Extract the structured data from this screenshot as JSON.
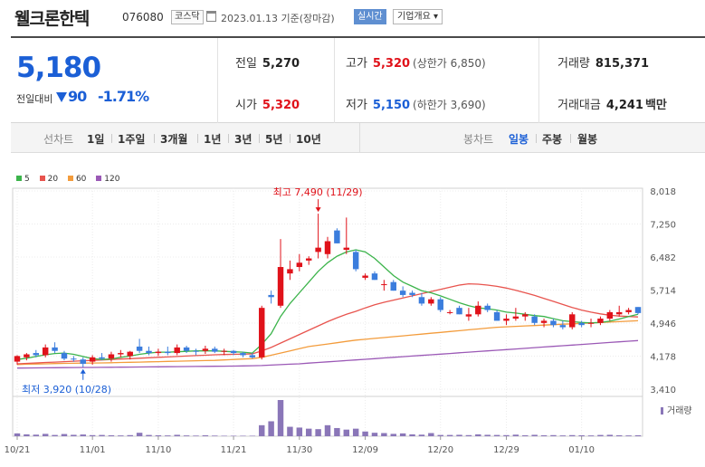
{
  "header": {
    "company_name": "웰크론한텍",
    "code": "076080",
    "market_badge": "코스닥",
    "date_text": "2023.01.13  기준(장마감)",
    "realtime_btn": "실시간",
    "info_btn": "기업개요 ▾"
  },
  "price": {
    "current": "5,180",
    "change_label": "전일대비",
    "change_value": "90",
    "change_pct": "-1.71%",
    "prev_close_label": "전일",
    "prev_close": "5,270",
    "high_label": "고가",
    "high": "5,320",
    "upper_limit": "(상한가 6,850)",
    "volume_label": "거래량",
    "volume": "815,371",
    "open_label": "시가",
    "open": "5,320",
    "low_label": "저가",
    "low": "5,150",
    "lower_limit": "(하한가 3,690)",
    "amount_label": "거래대금",
    "amount": "4,241",
    "amount_unit": "백만"
  },
  "period_bar": {
    "line_label": "선차트",
    "periods": [
      "1일",
      "1주일",
      "3개월",
      "1년",
      "3년",
      "5년",
      "10년"
    ],
    "candle_label": "봉차트",
    "candle_periods": [
      "일봉",
      "주봉",
      "월봉"
    ],
    "selected_candle": "일봉"
  },
  "chart_data": {
    "type": "candlestick",
    "legend": [
      {
        "name": "5",
        "color": "#3cb44b"
      },
      {
        "name": "20",
        "color": "#e8544e"
      },
      {
        "name": "60",
        "color": "#f39c3c"
      },
      {
        "name": "120",
        "color": "#9b59b6"
      }
    ],
    "colors": {
      "up": "#e0121a",
      "down": "#3b7ddd",
      "volume": "#8a76b8"
    },
    "y_ticks": [
      "8,018",
      "7,250",
      "6,482",
      "5,714",
      "4,946",
      "4,178",
      "3,410"
    ],
    "y_range": [
      3410,
      8018
    ],
    "x_ticks": [
      "10/21",
      "11/01",
      "11/10",
      "11/21",
      "11/30",
      "12/09",
      "12/20",
      "12/29",
      "01/10"
    ],
    "volume_label": "거래량",
    "annotations": {
      "max": "최고 7,490 (11/29)",
      "min": "최저 3,920 (10/28)"
    },
    "candles": [
      {
        "o": 4050,
        "h": 4200,
        "l": 3980,
        "c": 4180
      },
      {
        "o": 4150,
        "h": 4250,
        "l": 4080,
        "c": 4220
      },
      {
        "o": 4250,
        "h": 4320,
        "l": 4150,
        "c": 4200
      },
      {
        "o": 4200,
        "h": 4450,
        "l": 4150,
        "c": 4380
      },
      {
        "o": 4380,
        "h": 4500,
        "l": 4250,
        "c": 4300
      },
      {
        "o": 4250,
        "h": 4300,
        "l": 4080,
        "c": 4120
      },
      {
        "o": 4120,
        "h": 4180,
        "l": 4050,
        "c": 4100
      },
      {
        "o": 4100,
        "h": 4150,
        "l": 3920,
        "c": 4000
      },
      {
        "o": 4050,
        "h": 4200,
        "l": 3980,
        "c": 4150
      },
      {
        "o": 4150,
        "h": 4250,
        "l": 4080,
        "c": 4120
      },
      {
        "o": 4120,
        "h": 4280,
        "l": 4050,
        "c": 4220
      },
      {
        "o": 4220,
        "h": 4320,
        "l": 4150,
        "c": 4250
      },
      {
        "o": 4180,
        "h": 4300,
        "l": 4100,
        "c": 4280
      },
      {
        "o": 4400,
        "h": 4580,
        "l": 4250,
        "c": 4300
      },
      {
        "o": 4300,
        "h": 4400,
        "l": 4200,
        "c": 4250
      },
      {
        "o": 4250,
        "h": 4350,
        "l": 4180,
        "c": 4280
      },
      {
        "o": 4280,
        "h": 4400,
        "l": 4200,
        "c": 4250
      },
      {
        "o": 4250,
        "h": 4450,
        "l": 4200,
        "c": 4380
      },
      {
        "o": 4380,
        "h": 4420,
        "l": 4250,
        "c": 4300
      },
      {
        "o": 4300,
        "h": 4350,
        "l": 4200,
        "c": 4280
      },
      {
        "o": 4300,
        "h": 4420,
        "l": 4230,
        "c": 4350
      },
      {
        "o": 4350,
        "h": 4400,
        "l": 4250,
        "c": 4280
      },
      {
        "o": 4280,
        "h": 4350,
        "l": 4200,
        "c": 4300
      },
      {
        "o": 4300,
        "h": 4320,
        "l": 4200,
        "c": 4250
      },
      {
        "o": 4250,
        "h": 4280,
        "l": 4150,
        "c": 4200
      },
      {
        "o": 4200,
        "h": 4250,
        "l": 4120,
        "c": 4150
      },
      {
        "o": 4150,
        "h": 5350,
        "l": 4100,
        "c": 5300
      },
      {
        "o": 5600,
        "h": 5700,
        "l": 5400,
        "c": 5550
      },
      {
        "o": 5350,
        "h": 6900,
        "l": 5300,
        "c": 6250
      },
      {
        "o": 6100,
        "h": 6400,
        "l": 5950,
        "c": 6200
      },
      {
        "o": 6250,
        "h": 6550,
        "l": 6150,
        "c": 6350
      },
      {
        "o": 6400,
        "h": 6500,
        "l": 6300,
        "c": 6450
      },
      {
        "o": 6600,
        "h": 7490,
        "l": 6450,
        "c": 6700
      },
      {
        "o": 6550,
        "h": 6950,
        "l": 6450,
        "c": 6850
      },
      {
        "o": 7100,
        "h": 7150,
        "l": 6800,
        "c": 6800
      },
      {
        "o": 6650,
        "h": 7400,
        "l": 6550,
        "c": 6700
      },
      {
        "o": 6600,
        "h": 6650,
        "l": 6150,
        "c": 6200
      },
      {
        "o": 6000,
        "h": 6100,
        "l": 5950,
        "c": 6050
      },
      {
        "o": 6100,
        "h": 6150,
        "l": 5950,
        "c": 5950
      },
      {
        "o": 5850,
        "h": 5950,
        "l": 5700,
        "c": 5850
      },
      {
        "o": 5900,
        "h": 5950,
        "l": 5700,
        "c": 5700
      },
      {
        "o": 5700,
        "h": 5800,
        "l": 5550,
        "c": 5600
      },
      {
        "o": 5650,
        "h": 5700,
        "l": 5550,
        "c": 5600
      },
      {
        "o": 5550,
        "h": 5650,
        "l": 5350,
        "c": 5400
      },
      {
        "o": 5400,
        "h": 5550,
        "l": 5350,
        "c": 5500
      },
      {
        "o": 5500,
        "h": 5550,
        "l": 5200,
        "c": 5250
      },
      {
        "o": 5200,
        "h": 5250,
        "l": 5150,
        "c": 5200
      },
      {
        "o": 5300,
        "h": 5350,
        "l": 5150,
        "c": 5150
      },
      {
        "o": 5100,
        "h": 5300,
        "l": 5000,
        "c": 5150
      },
      {
        "o": 5150,
        "h": 5450,
        "l": 5100,
        "c": 5350
      },
      {
        "o": 5350,
        "h": 5400,
        "l": 5200,
        "c": 5250
      },
      {
        "o": 5200,
        "h": 5250,
        "l": 5000,
        "c": 5000
      },
      {
        "o": 5000,
        "h": 5150,
        "l": 4900,
        "c": 5050
      },
      {
        "o": 5050,
        "h": 5300,
        "l": 5000,
        "c": 5100
      },
      {
        "o": 5100,
        "h": 5200,
        "l": 5000,
        "c": 5150
      },
      {
        "o": 5100,
        "h": 5150,
        "l": 4900,
        "c": 4950
      },
      {
        "o": 4950,
        "h": 5050,
        "l": 4850,
        "c": 5000
      },
      {
        "o": 5000,
        "h": 5050,
        "l": 4850,
        "c": 4900
      },
      {
        "o": 4900,
        "h": 5000,
        "l": 4800,
        "c": 4850
      },
      {
        "o": 4850,
        "h": 5200,
        "l": 4800,
        "c": 5150
      },
      {
        "o": 4950,
        "h": 5000,
        "l": 4850,
        "c": 4900
      },
      {
        "o": 4950,
        "h": 5050,
        "l": 4850,
        "c": 4950
      },
      {
        "o": 4950,
        "h": 5100,
        "l": 4900,
        "c": 5050
      },
      {
        "o": 5050,
        "h": 5250,
        "l": 5000,
        "c": 5200
      },
      {
        "o": 5150,
        "h": 5350,
        "l": 5100,
        "c": 5200
      },
      {
        "o": 5200,
        "h": 5300,
        "l": 5150,
        "c": 5250
      },
      {
        "o": 5320,
        "h": 5320,
        "l": 5150,
        "c": 5180
      }
    ],
    "volumes": [
      18,
      12,
      10,
      15,
      8,
      14,
      9,
      11,
      7,
      8,
      6,
      5,
      7,
      22,
      8,
      6,
      5,
      9,
      5,
      4,
      6,
      4,
      3,
      3,
      3,
      3,
      70,
      95,
      230,
      60,
      55,
      48,
      45,
      70,
      52,
      42,
      48,
      30,
      22,
      20,
      15,
      18,
      12,
      10,
      20,
      8,
      8,
      9,
      7,
      12,
      9,
      8,
      7,
      10,
      6,
      9,
      6,
      7,
      5,
      7,
      6,
      5,
      8,
      9,
      6,
      5,
      6
    ],
    "ma5": [
      4100,
      4130,
      4170,
      4210,
      4240,
      4250,
      4220,
      4170,
      4120,
      4100,
      4110,
      4150,
      4180,
      4220,
      4250,
      4270,
      4270,
      4280,
      4290,
      4300,
      4300,
      4300,
      4290,
      4280,
      4270,
      4250,
      4450,
      4700,
      5100,
      5400,
      5650,
      5900,
      6150,
      6350,
      6500,
      6600,
      6650,
      6600,
      6450,
      6250,
      6050,
      5900,
      5800,
      5700,
      5650,
      5580,
      5500,
      5420,
      5350,
      5300,
      5280,
      5250,
      5200,
      5180,
      5150,
      5120,
      5100,
      5050,
      5000,
      4980,
      4960,
      4950,
      4960,
      4990,
      5040,
      5100,
      5150
    ],
    "ma20": [
      4000,
      4010,
      4020,
      4030,
      4040,
      4050,
      4060,
      4070,
      4080,
      4090,
      4100,
      4110,
      4120,
      4130,
      4140,
      4150,
      4160,
      4170,
      4180,
      4190,
      4200,
      4210,
      4215,
      4220,
      4225,
      4230,
      4300,
      4380,
      4480,
      4580,
      4680,
      4780,
      4880,
      4980,
      5070,
      5150,
      5220,
      5300,
      5370,
      5430,
      5480,
      5530,
      5580,
      5630,
      5680,
      5730,
      5780,
      5830,
      5860,
      5850,
      5830,
      5800,
      5760,
      5710,
      5650,
      5590,
      5520,
      5450,
      5380,
      5310,
      5250,
      5200,
      5160,
      5130,
      5110,
      5100,
      5090
    ],
    "ma60": [
      3980,
      3990,
      3995,
      4000,
      4005,
      4010,
      4012,
      4015,
      4018,
      4020,
      4025,
      4030,
      4035,
      4040,
      4045,
      4050,
      4055,
      4060,
      4065,
      4070,
      4075,
      4080,
      4090,
      4100,
      4110,
      4120,
      4150,
      4200,
      4250,
      4300,
      4350,
      4400,
      4430,
      4460,
      4490,
      4520,
      4550,
      4570,
      4590,
      4610,
      4630,
      4650,
      4670,
      4690,
      4710,
      4730,
      4750,
      4770,
      4790,
      4810,
      4830,
      4850,
      4860,
      4870,
      4880,
      4890,
      4900,
      4910,
      4920,
      4930,
      4940,
      4950,
      4960,
      4970,
      4980,
      4990,
      5000
    ],
    "ma120": [
      3900,
      3902,
      3904,
      3906,
      3908,
      3910,
      3912,
      3914,
      3916,
      3918,
      3920,
      3922,
      3924,
      3926,
      3928,
      3930,
      3932,
      3934,
      3936,
      3938,
      3940,
      3942,
      3944,
      3946,
      3950,
      3955,
      3960,
      3970,
      3980,
      3990,
      4000,
      4015,
      4030,
      4045,
      4060,
      4075,
      4090,
      4105,
      4120,
      4135,
      4150,
      4165,
      4180,
      4195,
      4210,
      4225,
      4240,
      4255,
      4270,
      4285,
      4300,
      4315,
      4330,
      4345,
      4360,
      4375,
      4390,
      4405,
      4420,
      4435,
      4450,
      4465,
      4480,
      4495,
      4510,
      4525,
      4540
    ]
  }
}
